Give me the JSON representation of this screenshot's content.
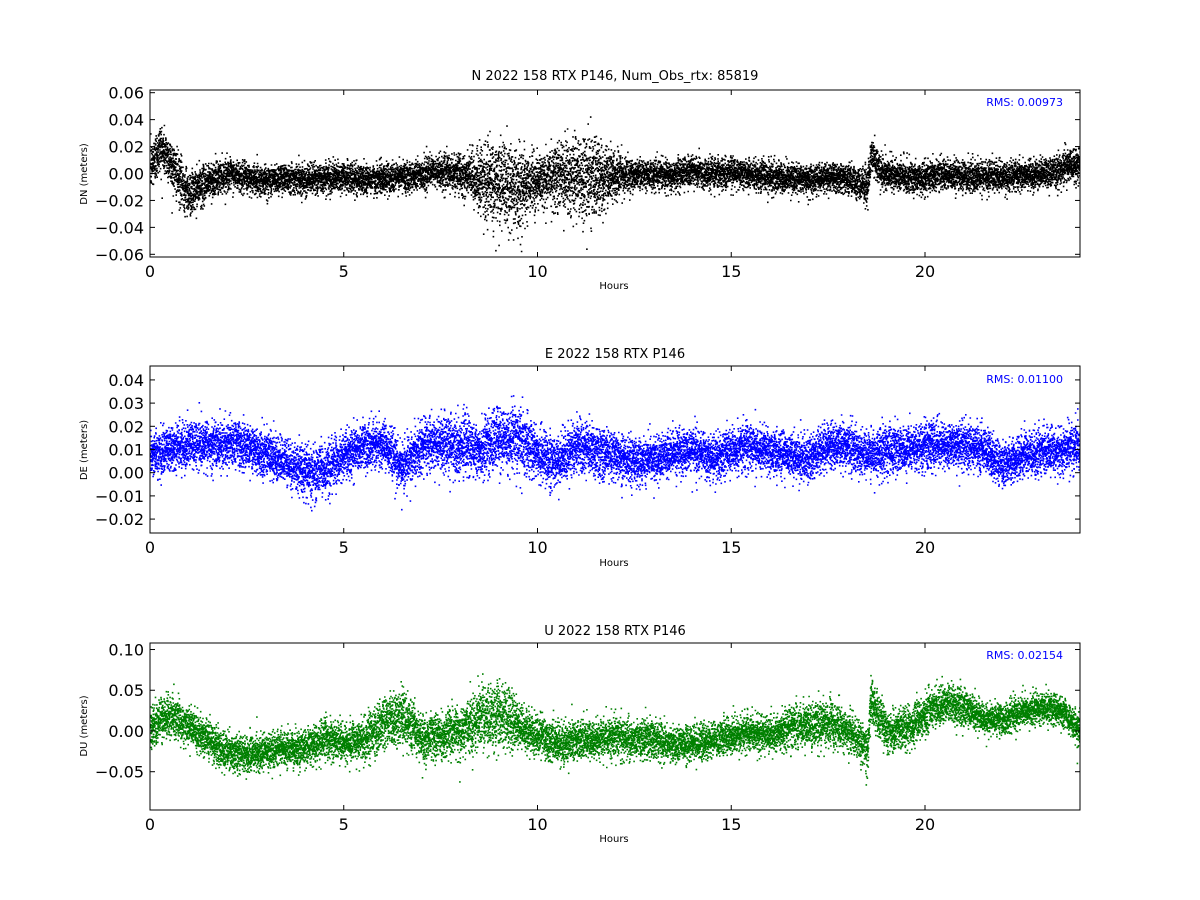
{
  "chart_data": [
    {
      "type": "scatter",
      "title": "N 2022 158 RTX  P146, Num_Obs_rtx: 85819",
      "xlabel": "Hours",
      "ylabel": "DN (meters)",
      "xlim": [
        0,
        24
      ],
      "ylim": [
        -0.062,
        0.062
      ],
      "xticks": [
        0,
        5,
        10,
        15,
        20
      ],
      "yticks": [
        -0.06,
        -0.04,
        -0.02,
        0.0,
        0.02,
        0.04,
        0.06
      ],
      "ytick_decimals": 2,
      "annotation": "RMS:  0.00973",
      "grid": false,
      "series": [
        {
          "color": "#000000",
          "x": [
            0,
            0.25,
            0.5,
            0.75,
            1,
            1.25,
            1.5,
            2,
            2.5,
            3,
            3.5,
            4,
            4.5,
            5,
            5.5,
            6,
            6.5,
            7,
            7.5,
            8,
            8.5,
            9,
            9.5,
            10,
            10.5,
            11,
            11.5,
            12,
            12.5,
            13,
            13.5,
            14,
            14.5,
            15,
            15.5,
            16,
            16.5,
            17,
            17.5,
            18,
            18.5,
            18.6,
            18.8,
            19,
            19.5,
            20,
            20.5,
            21,
            21.5,
            22,
            22.5,
            23,
            23.5,
            24
          ],
          "y": [
            0.005,
            0.02,
            0.01,
            -0.005,
            -0.015,
            -0.01,
            -0.005,
            0.0,
            -0.003,
            -0.005,
            -0.002,
            -0.004,
            -0.003,
            -0.002,
            -0.004,
            -0.003,
            -0.002,
            0.0,
            0.002,
            0.0,
            -0.005,
            -0.008,
            -0.01,
            -0.005,
            0.0,
            -0.002,
            -0.003,
            -0.002,
            0.0,
            0.0,
            0.0,
            0.002,
            0.0,
            0.002,
            0.0,
            -0.002,
            -0.003,
            -0.004,
            -0.002,
            -0.004,
            -0.008,
            0.015,
            0.003,
            0.0,
            -0.002,
            -0.003,
            0.0,
            -0.002,
            -0.001,
            -0.002,
            0.0,
            0.0,
            0.004,
            0.008
          ],
          "spread": [
            0.015,
            0.015,
            0.014,
            0.015,
            0.013,
            0.012,
            0.011,
            0.009,
            0.009,
            0.009,
            0.009,
            0.009,
            0.009,
            0.009,
            0.009,
            0.009,
            0.009,
            0.009,
            0.01,
            0.012,
            0.02,
            0.025,
            0.025,
            0.013,
            0.02,
            0.024,
            0.025,
            0.013,
            0.009,
            0.009,
            0.009,
            0.009,
            0.009,
            0.009,
            0.009,
            0.009,
            0.009,
            0.009,
            0.009,
            0.009,
            0.012,
            0.012,
            0.01,
            0.009,
            0.009,
            0.009,
            0.009,
            0.009,
            0.009,
            0.009,
            0.009,
            0.009,
            0.01,
            0.011
          ]
        }
      ]
    },
    {
      "type": "scatter",
      "title": "E 2022 158 RTX  P146",
      "xlabel": "Hours",
      "ylabel": "DE (meters)",
      "xlim": [
        0,
        24
      ],
      "ylim": [
        -0.026,
        0.046
      ],
      "xticks": [
        0,
        5,
        10,
        15,
        20
      ],
      "yticks": [
        -0.02,
        -0.01,
        0.0,
        0.01,
        0.02,
        0.03,
        0.04
      ],
      "ytick_decimals": 2,
      "annotation": "RMS:  0.01100",
      "grid": false,
      "series": [
        {
          "color": "#0000ff",
          "x": [
            0,
            0.5,
            1,
            1.5,
            2,
            2.5,
            3,
            3.5,
            4,
            4.5,
            5,
            5.5,
            6,
            6.5,
            7,
            7.5,
            8,
            8.5,
            9,
            9.5,
            10,
            10.5,
            11,
            11.5,
            12,
            12.5,
            13,
            13.5,
            14,
            14.5,
            15,
            15.5,
            16,
            16.5,
            17,
            17.5,
            18,
            18.5,
            19,
            19.5,
            20,
            20.5,
            21,
            21.5,
            22,
            22.5,
            23,
            23.5,
            24
          ],
          "y": [
            0.008,
            0.01,
            0.012,
            0.012,
            0.013,
            0.012,
            0.008,
            0.005,
            0.0,
            0.002,
            0.008,
            0.012,
            0.013,
            0.003,
            0.012,
            0.013,
            0.012,
            0.01,
            0.015,
            0.015,
            0.008,
            0.004,
            0.012,
            0.01,
            0.008,
            0.005,
            0.006,
            0.008,
            0.01,
            0.006,
            0.01,
            0.012,
            0.009,
            0.008,
            0.006,
            0.012,
            0.012,
            0.008,
            0.01,
            0.01,
            0.012,
            0.012,
            0.012,
            0.011,
            0.003,
            0.008,
            0.01,
            0.01,
            0.012
          ],
          "spread": [
            0.008,
            0.008,
            0.008,
            0.008,
            0.008,
            0.008,
            0.008,
            0.008,
            0.009,
            0.009,
            0.008,
            0.008,
            0.008,
            0.008,
            0.009,
            0.01,
            0.01,
            0.01,
            0.011,
            0.011,
            0.009,
            0.009,
            0.009,
            0.009,
            0.008,
            0.008,
            0.008,
            0.008,
            0.008,
            0.008,
            0.008,
            0.008,
            0.008,
            0.008,
            0.008,
            0.008,
            0.008,
            0.008,
            0.008,
            0.008,
            0.008,
            0.008,
            0.008,
            0.008,
            0.008,
            0.008,
            0.008,
            0.008,
            0.008
          ]
        }
      ]
    },
    {
      "type": "scatter",
      "title": "U 2022 158 RTX  P146",
      "xlabel": "Hours",
      "ylabel": "DU (meters)",
      "xlim": [
        0,
        24
      ],
      "ylim": [
        -0.097,
        0.108
      ],
      "xticks": [
        0,
        5,
        10,
        15,
        20
      ],
      "yticks": [
        -0.05,
        0.0,
        0.05,
        0.1
      ],
      "ytick_decimals": 2,
      "annotation": "RMS:  0.02154",
      "grid": false,
      "series": [
        {
          "color": "#008000",
          "x": [
            0,
            0.5,
            1,
            1.5,
            2,
            2.5,
            3,
            3.5,
            4,
            4.5,
            5,
            5.5,
            6,
            6.5,
            7,
            7.5,
            8,
            8.5,
            9,
            9.5,
            10,
            10.5,
            11,
            11.5,
            12,
            12.5,
            13,
            13.5,
            14,
            14.5,
            15,
            15.5,
            16,
            16.5,
            17,
            17.5,
            18,
            18.5,
            18.6,
            19,
            19.5,
            20,
            20.5,
            21,
            21.5,
            22,
            22.5,
            23,
            23.5,
            24
          ],
          "y": [
            0.005,
            0.02,
            0.005,
            -0.01,
            -0.025,
            -0.03,
            -0.025,
            -0.02,
            -0.02,
            -0.01,
            -0.015,
            -0.01,
            0.01,
            0.02,
            -0.01,
            -0.005,
            0.0,
            0.015,
            0.02,
            0.005,
            -0.005,
            -0.015,
            -0.01,
            -0.01,
            -0.005,
            -0.01,
            -0.01,
            -0.015,
            -0.015,
            -0.01,
            -0.005,
            0.0,
            -0.005,
            0.005,
            0.01,
            0.01,
            0.0,
            -0.02,
            0.04,
            0.0,
            0.005,
            0.02,
            0.035,
            0.03,
            0.015,
            0.015,
            0.025,
            0.03,
            0.025,
            0.0
          ],
          "spread": [
            0.02,
            0.02,
            0.02,
            0.02,
            0.018,
            0.018,
            0.018,
            0.018,
            0.018,
            0.02,
            0.02,
            0.02,
            0.028,
            0.03,
            0.022,
            0.022,
            0.025,
            0.03,
            0.035,
            0.025,
            0.02,
            0.02,
            0.02,
            0.02,
            0.02,
            0.018,
            0.018,
            0.018,
            0.018,
            0.018,
            0.018,
            0.018,
            0.018,
            0.02,
            0.022,
            0.022,
            0.02,
            0.02,
            0.025,
            0.02,
            0.02,
            0.02,
            0.02,
            0.02,
            0.015,
            0.015,
            0.015,
            0.015,
            0.015,
            0.018
          ]
        }
      ]
    }
  ]
}
